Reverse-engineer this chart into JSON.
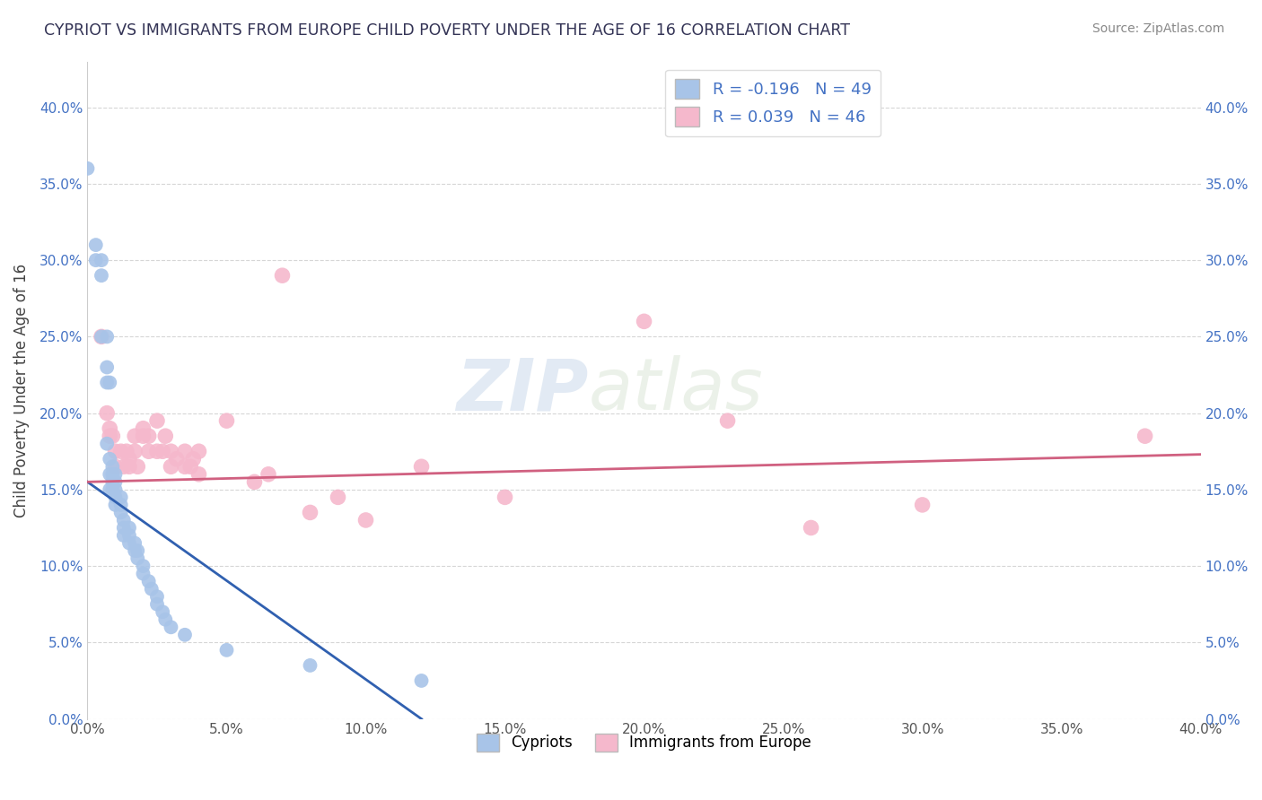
{
  "title": "CYPRIOT VS IMMIGRANTS FROM EUROPE CHILD POVERTY UNDER THE AGE OF 16 CORRELATION CHART",
  "source": "Source: ZipAtlas.com",
  "ylabel": "Child Poverty Under the Age of 16",
  "xlabel": "",
  "xlim": [
    0.0,
    0.4
  ],
  "ylim": [
    0.0,
    0.42
  ],
  "x_ticks": [
    0.0,
    0.05,
    0.1,
    0.15,
    0.2,
    0.25,
    0.3,
    0.35,
    0.4
  ],
  "y_ticks": [
    0.0,
    0.05,
    0.1,
    0.15,
    0.2,
    0.25,
    0.3,
    0.35,
    0.4
  ],
  "cypriot_R": -0.196,
  "cypriot_N": 49,
  "immigrants_R": 0.039,
  "immigrants_N": 46,
  "cypriot_color": "#a8c4e8",
  "immigrants_color": "#f5b8cc",
  "cypriot_line_color": "#3060b0",
  "immigrants_line_color": "#d06080",
  "legend_label_1": "Cypriots",
  "legend_label_2": "Immigrants from Europe",
  "watermark_zip": "ZIP",
  "watermark_atlas": "atlas",
  "cypriot_x": [
    0.0,
    0.003,
    0.003,
    0.005,
    0.005,
    0.005,
    0.007,
    0.007,
    0.007,
    0.007,
    0.008,
    0.008,
    0.008,
    0.008,
    0.009,
    0.009,
    0.009,
    0.009,
    0.01,
    0.01,
    0.01,
    0.01,
    0.01,
    0.012,
    0.012,
    0.012,
    0.013,
    0.013,
    0.013,
    0.015,
    0.015,
    0.015,
    0.017,
    0.017,
    0.018,
    0.018,
    0.02,
    0.02,
    0.022,
    0.023,
    0.025,
    0.025,
    0.027,
    0.028,
    0.03,
    0.035,
    0.05,
    0.08,
    0.12
  ],
  "cypriot_y": [
    0.36,
    0.3,
    0.31,
    0.3,
    0.29,
    0.25,
    0.25,
    0.23,
    0.22,
    0.18,
    0.17,
    0.16,
    0.15,
    0.22,
    0.165,
    0.16,
    0.155,
    0.15,
    0.16,
    0.155,
    0.15,
    0.145,
    0.14,
    0.145,
    0.14,
    0.135,
    0.13,
    0.125,
    0.12,
    0.125,
    0.12,
    0.115,
    0.115,
    0.11,
    0.11,
    0.105,
    0.1,
    0.095,
    0.09,
    0.085,
    0.08,
    0.075,
    0.07,
    0.065,
    0.06,
    0.055,
    0.045,
    0.035,
    0.025
  ],
  "immigrants_x": [
    0.005,
    0.007,
    0.008,
    0.008,
    0.009,
    0.01,
    0.01,
    0.012,
    0.013,
    0.014,
    0.015,
    0.015,
    0.017,
    0.017,
    0.018,
    0.02,
    0.02,
    0.022,
    0.022,
    0.025,
    0.025,
    0.027,
    0.028,
    0.03,
    0.03,
    0.032,
    0.035,
    0.035,
    0.037,
    0.038,
    0.04,
    0.04,
    0.05,
    0.06,
    0.065,
    0.07,
    0.08,
    0.09,
    0.1,
    0.12,
    0.15,
    0.2,
    0.23,
    0.26,
    0.3,
    0.38
  ],
  "immigrants_y": [
    0.25,
    0.2,
    0.19,
    0.185,
    0.185,
    0.175,
    0.165,
    0.175,
    0.165,
    0.175,
    0.165,
    0.17,
    0.185,
    0.175,
    0.165,
    0.185,
    0.19,
    0.175,
    0.185,
    0.175,
    0.195,
    0.175,
    0.185,
    0.175,
    0.165,
    0.17,
    0.165,
    0.175,
    0.165,
    0.17,
    0.175,
    0.16,
    0.195,
    0.155,
    0.16,
    0.29,
    0.135,
    0.145,
    0.13,
    0.165,
    0.145,
    0.26,
    0.195,
    0.125,
    0.14,
    0.185
  ]
}
